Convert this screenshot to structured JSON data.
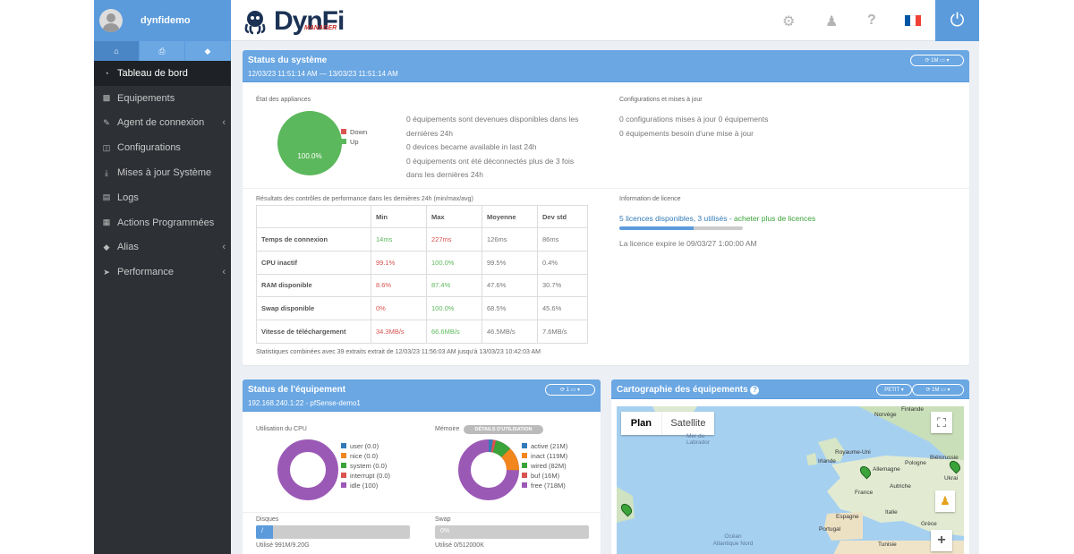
{
  "user": {
    "name": "dynfidemo"
  },
  "sidebar_tabs": [
    {
      "icon": "home-icon"
    },
    {
      "icon": "printer-icon"
    },
    {
      "icon": "tags-icon"
    }
  ],
  "menu": [
    {
      "label": "Tableau de bord",
      "icon": "dashboard-icon",
      "active": true,
      "chevron": false
    },
    {
      "label": "Equipements",
      "icon": "printer-icon",
      "chevron": false
    },
    {
      "label": "Agent de connexion",
      "icon": "connect-icon",
      "chevron": true
    },
    {
      "label": "Configurations",
      "icon": "config-icon",
      "chevron": false
    },
    {
      "label": "Mises à jour Système",
      "icon": "download-icon",
      "chevron": false
    },
    {
      "label": "Logs",
      "icon": "logs-icon",
      "chevron": false
    },
    {
      "label": "Actions Programmées",
      "icon": "calendar-icon",
      "chevron": false
    },
    {
      "label": "Alias",
      "icon": "tags-icon",
      "chevron": true
    },
    {
      "label": "Performance",
      "icon": "rocket-icon",
      "chevron": true
    }
  ],
  "logo": {
    "main": "DynFi",
    "sub": "MANAGER"
  },
  "topbar_icons": {
    "settings": "gear-icon",
    "users": "users-icon",
    "help": "?",
    "power": "power-icon"
  },
  "status": {
    "title": "Status du système",
    "range": "12/03/23 11:51:14 AM — 13/03/23 11:51:14 AM",
    "refresh": "⟳ 1M ▭ ▾",
    "appliances_label": "État des appliances",
    "pie": {
      "down_label": "Down",
      "up_label": "Up",
      "up_value": "100.0%",
      "up_fraction": 1.0,
      "colors": {
        "down": "#d9534f",
        "up": "#5cb85c"
      }
    },
    "lines": [
      "0 équipements sont devenues disponibles dans les",
      "dernières 24h",
      "0 devices became available in last 24h",
      "0 équipements ont été déconnectés plus de 3 fois",
      "dans les dernières 24h"
    ],
    "config_label": "Configurations et mises à jour",
    "config_lines": [
      "0 configurations mises à jour 0 équipements",
      "0 équipements besoin d'une mise à jour"
    ],
    "perf_label": "Résultats des contrôles de performance dans les dernières 24h (min/max/avg)",
    "perf_headers": [
      "",
      "Min",
      "Max",
      "Moyenne",
      "Dev std"
    ],
    "perf_rows": [
      [
        "Temps de connexion",
        "14ms",
        "227ms",
        "126ms",
        "86ms"
      ],
      [
        "CPU inactif",
        "99.1%",
        "100.0%",
        "99.5%",
        "0.4%"
      ],
      [
        "RAM disponible",
        "8.6%",
        "87.4%",
        "47.6%",
        "30.7%"
      ],
      [
        "Swap disponible",
        "0%",
        "100.0%",
        "68.5%",
        "45.6%"
      ],
      [
        "Vitesse de téléchargement",
        "34.3MB/s",
        "66.6MB/s",
        "46.5MB/s",
        "7.6MB/s"
      ]
    ],
    "perf_colors": [
      [
        "",
        "green",
        "red",
        "grey",
        "grey"
      ],
      [
        "",
        "red",
        "green",
        "grey",
        "grey"
      ],
      [
        "",
        "red",
        "green",
        "grey",
        "grey"
      ],
      [
        "",
        "red",
        "green",
        "grey",
        "grey"
      ],
      [
        "",
        "red",
        "green",
        "grey",
        "grey"
      ]
    ],
    "perf_footer": "Statistiques combinées avec 39 extraits extrait de 12/03/23 11:56:03 AM jusqu'à 13/03/23 10:42:03 AM",
    "licence_label": "Information de licence",
    "licence_text": "5 licences disponibles, 3 utilisés - ",
    "licence_link": "acheter plus de licences",
    "licence_usage_fraction": 0.6,
    "licence_expiry": "La licence expire le 09/03/27 1:00:00 AM"
  },
  "device": {
    "title": "Status de l'équipement",
    "subtitle": "192.168.240.1:22 - pfSense-demo1",
    "refresh": "⟳ 1 ▭ ▾",
    "cpu_label": "Utilisation du CPU",
    "cpu_legend": [
      {
        "label": "user (0.0)",
        "color": "#337ab7"
      },
      {
        "label": "nice (0.0)",
        "color": "#f0861c"
      },
      {
        "label": "system (0.0)",
        "color": "#3aa33a"
      },
      {
        "label": "interrupt (0.0)",
        "color": "#d9534f"
      },
      {
        "label": "idle (100)",
        "color": "#9b59b6"
      }
    ],
    "mem_label": "Mémoire",
    "mem_button": "DÉTAILS D'UTILISATION",
    "mem_legend": [
      {
        "label": "active (21M)",
        "color": "#337ab7"
      },
      {
        "label": "inact (119M)",
        "color": "#f0861c"
      },
      {
        "label": "wired (82M)",
        "color": "#3aa33a"
      },
      {
        "label": "buf (16M)",
        "color": "#d9534f"
      },
      {
        "label": "free (718M)",
        "color": "#9b59b6"
      }
    ],
    "disk_label": "Disques",
    "disk_bar": "/",
    "disk_fraction": 0.11,
    "disk_used": "Utilisé 991M/9.20G",
    "swap_label": "Swap",
    "swap_bar": "0%",
    "swap_fraction": 0.0,
    "swap_used": "Utilisé 0/512000K"
  },
  "map": {
    "title": "Cartographie des équipements",
    "help": "?",
    "size_btn": "PETIT ▾",
    "refresh": "⟳ 1M ▭ ▾",
    "tab_plan": "Plan",
    "tab_satellite": "Satellite",
    "labels": [
      "Finlande",
      "Norvège",
      "Mer du Labrador",
      "Royaume-Uni",
      "Biélorussie",
      "Irlande",
      "Allemagne",
      "Pologne",
      "Ukrai",
      "France",
      "Autriche",
      "Espagne",
      "Italie",
      "Portugal",
      "Grèce",
      "Océan Atlantique Nord",
      "Tunisie"
    ],
    "zoom_in": "+",
    "fullscreen": "⛶"
  }
}
